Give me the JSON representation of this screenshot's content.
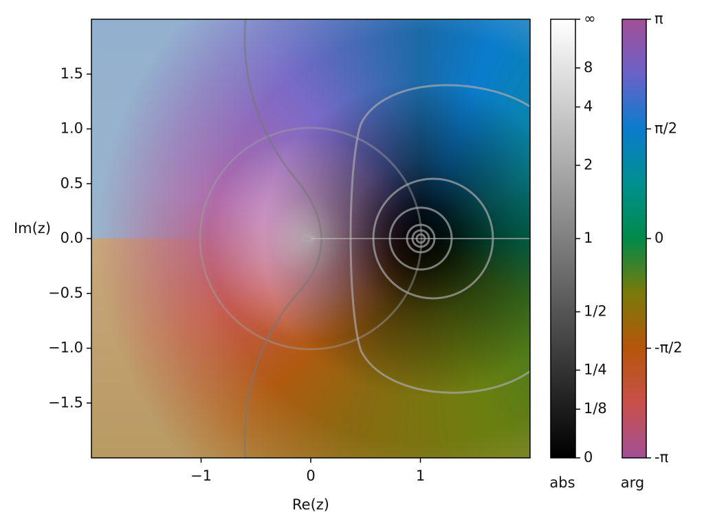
{
  "chart_data": {
    "type": "domain-coloring",
    "xlabel": "Re(z)",
    "ylabel": "Im(z)",
    "xlim": [
      -2,
      2
    ],
    "ylim": [
      -2,
      2
    ],
    "xticks": [
      {
        "value": -1,
        "label": "−1"
      },
      0,
      1
    ],
    "yticks": [
      1.5,
      {
        "value": 1.0,
        "label": "1.0"
      },
      0.5,
      {
        "value": 0,
        "label": "0.0"
      },
      {
        "value": -0.5,
        "label": "−0.5"
      },
      {
        "value": -1.0,
        "label": "−1.0"
      },
      {
        "value": -1.5,
        "label": "−1.5"
      }
    ],
    "colorbars": [
      {
        "label": "abs",
        "ylim": [
          0,
          1
        ],
        "yticks": [
          0,
          {
            "value": 0.111,
            "label": "1/8"
          },
          {
            "value": 0.2,
            "label": "1/4"
          },
          {
            "value": 0.333,
            "label": "1/2"
          },
          {
            "value": 0.5,
            "label": "1"
          },
          {
            "value": 0.667,
            "label": "2"
          },
          {
            "value": 0.8,
            "label": "4"
          },
          {
            "value": 0.889,
            "label": "8"
          },
          {
            "value": 1,
            "label": "∞"
          }
        ]
      },
      {
        "label": "arg",
        "ylim": [
          -3.1416,
          3.1416
        ],
        "yticks": [
          {
            "value": -3.1416,
            "label": "-π"
          },
          {
            "value": -1.5708,
            "label": "-π/2"
          },
          0,
          {
            "value": 1.5708,
            "label": "π/2"
          },
          {
            "value": 3.1416,
            "label": "π"
          }
        ]
      }
    ]
  }
}
